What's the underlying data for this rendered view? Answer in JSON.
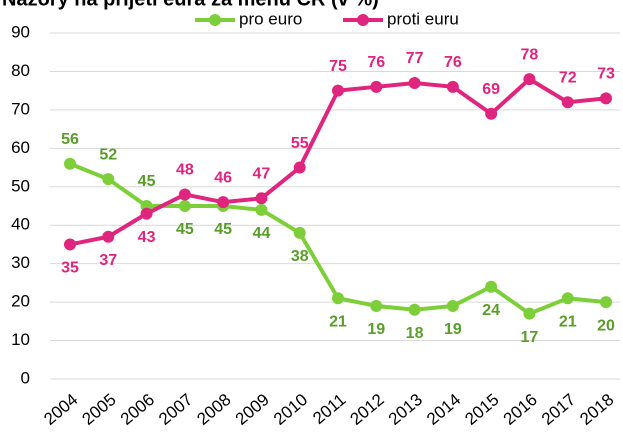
{
  "chart_data": {
    "type": "line",
    "title": "Názory na přijetí eura za měnu ČR (v %)",
    "categories": [
      "2004",
      "2005",
      "2006",
      "2007",
      "2008",
      "2009",
      "2010",
      "2011",
      "2012",
      "2013",
      "2014",
      "2015",
      "2016",
      "2017",
      "2018"
    ],
    "series": [
      {
        "name": "pro euro",
        "color": "#7dcf3a",
        "label_color": "#5a9e2a",
        "values": [
          56,
          52,
          45,
          45,
          45,
          44,
          38,
          21,
          19,
          18,
          19,
          24,
          17,
          21,
          20
        ]
      },
      {
        "name": "proti euru",
        "color": "#e0257f",
        "label_color": "#e0257f",
        "values": [
          35,
          37,
          43,
          48,
          46,
          47,
          55,
          75,
          76,
          77,
          76,
          69,
          78,
          72,
          73
        ]
      }
    ],
    "ylim": [
      0,
      90
    ],
    "yticks": [
      0,
      10,
      20,
      30,
      40,
      50,
      60,
      70,
      80,
      90
    ],
    "grid": true
  }
}
